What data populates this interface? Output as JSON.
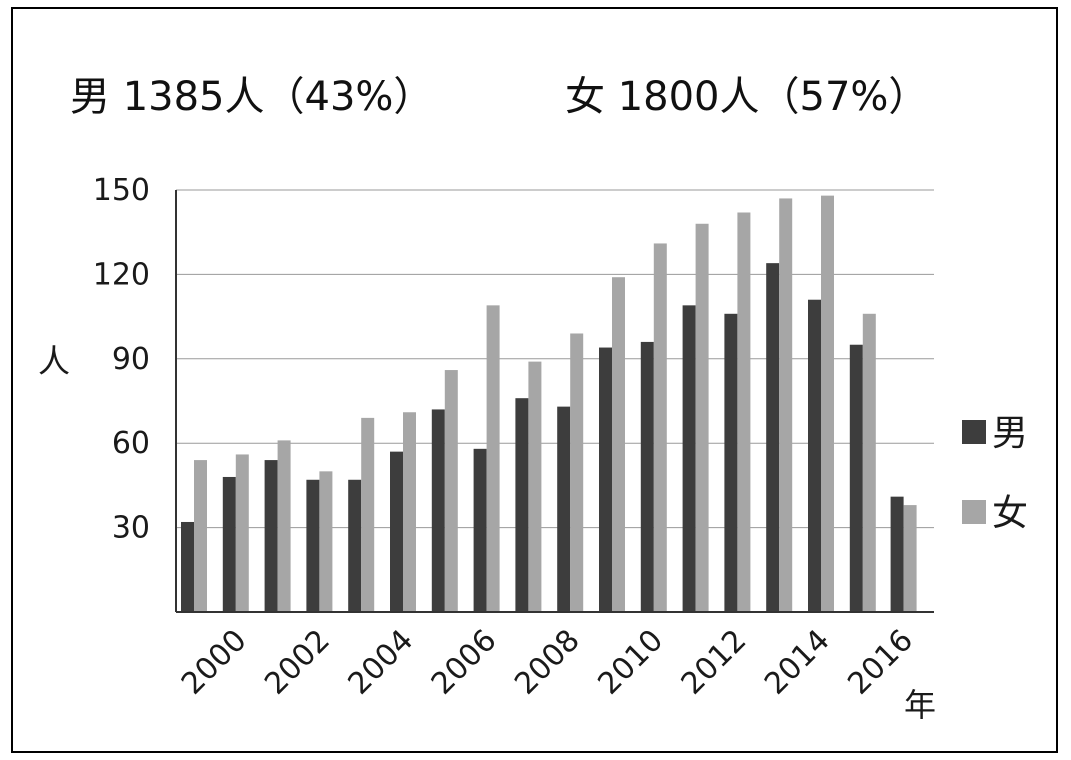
{
  "chart_data": {
    "type": "bar",
    "title": "男 1385人（43%）　女 1800人（57%）",
    "title_parts": {
      "male": "男 1385人（43%）",
      "female": "女 1800人（57%）"
    },
    "xlabel": "年",
    "ylabel": "人",
    "ylim": [
      0,
      150
    ],
    "yticks": [
      30,
      60,
      90,
      120,
      150
    ],
    "x_tick_labels": [
      "2000",
      "2002",
      "2004",
      "2006",
      "2008",
      "2010",
      "2012",
      "2014",
      "2016"
    ],
    "categories": [
      "2000",
      "2001",
      "2002",
      "2003",
      "2004",
      "2005",
      "2006",
      "2007",
      "2008",
      "2009",
      "2010",
      "2011",
      "2012",
      "2013",
      "2014",
      "2015",
      "2016"
    ],
    "series": [
      {
        "name": "男",
        "color": "#3d3d3d",
        "values": [
          32,
          48,
          54,
          47,
          47,
          57,
          72,
          58,
          76,
          73,
          94,
          96,
          109,
          106,
          124,
          111,
          95
        ]
      },
      {
        "name": "女",
        "color": "#a6a6a6",
        "values": [
          54,
          56,
          61,
          50,
          69,
          71,
          86,
          109,
          89,
          99,
          119,
          131,
          138,
          142,
          147,
          148,
          106
        ]
      }
    ],
    "trailing_pair": {
      "male": 41,
      "female": 38
    },
    "grid": true,
    "legend_position": "right"
  }
}
